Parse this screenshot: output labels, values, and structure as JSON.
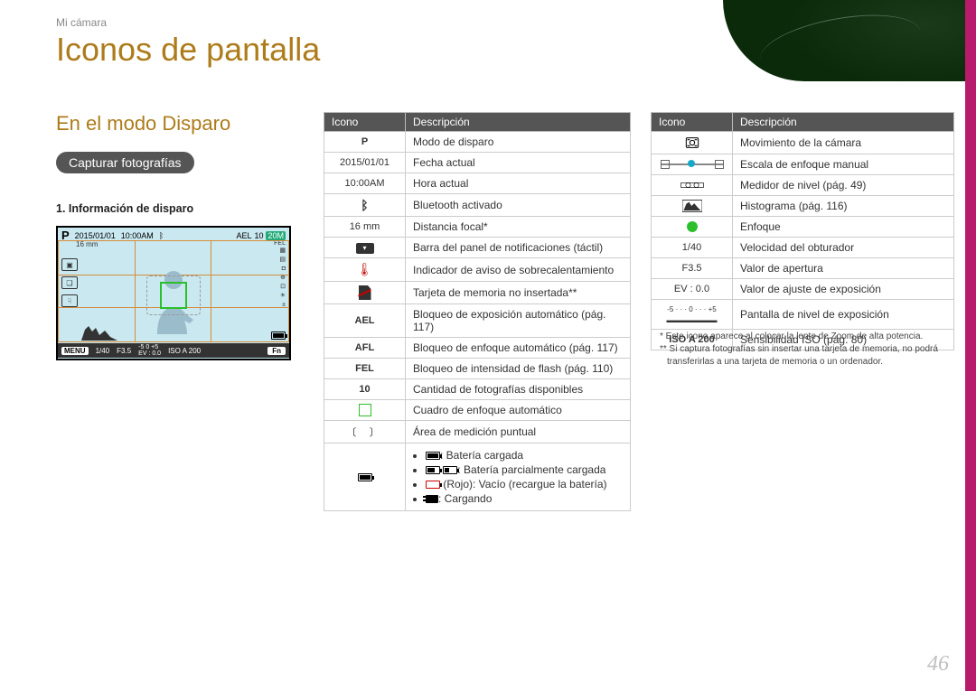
{
  "breadcrumb": "Mi cámara",
  "page_title": "Iconos de pantalla",
  "section_heading": "En el modo Disparo",
  "pill_label": "Capturar fotografías",
  "sub_label": "1. Información de disparo",
  "page_number": "46",
  "lcd": {
    "mode": "P",
    "date": "2015/01/01",
    "time": "10:00AM",
    "bt": "✱",
    "ael": "AEL",
    "fel": "FEL",
    "count": "10",
    "mp": "20M",
    "focal": "16 mm",
    "menu": "MENU",
    "fn": "Fn",
    "shutter": "1/40",
    "aperture": "F3.5",
    "ev_label": "EV : 0.0",
    "scale": "-5    0    +5",
    "iso": "ISO A 200"
  },
  "headers": {
    "icon": "Icono",
    "desc": "Descripción"
  },
  "table1": [
    {
      "icon_text": "P",
      "bold": true,
      "desc": "Modo de disparo"
    },
    {
      "icon_text": "2015/01/01",
      "desc": "Fecha actual"
    },
    {
      "icon_text": "10:00AM",
      "desc": "Hora actual"
    },
    {
      "icon_svg": "bluetooth",
      "desc": "Bluetooth activado"
    },
    {
      "icon_text": "16 mm",
      "desc": "Distancia focal*"
    },
    {
      "icon_svg": "panel-bar",
      "desc": "Barra del panel de notificaciones (táctil)"
    },
    {
      "icon_svg": "thermo",
      "desc": "Indicador de aviso de sobrecalentamiento"
    },
    {
      "icon_svg": "sd-no",
      "desc": "Tarjeta de memoria no insertada**"
    },
    {
      "icon_text": "AEL",
      "bold": true,
      "desc": "Bloqueo de exposición automático (pág. 117)"
    },
    {
      "icon_text": "AFL",
      "bold": true,
      "desc": "Bloqueo de enfoque automático (pág. 117)"
    },
    {
      "icon_text": "FEL",
      "bold": true,
      "desc": "Bloqueo de intensidad de flash (pág. 110)"
    },
    {
      "icon_text": "10",
      "bold": true,
      "desc": "Cantidad de fotografías disponibles"
    },
    {
      "icon_svg": "green-sq",
      "desc": "Cuadro de enfoque automático"
    },
    {
      "icon_svg": "bracket",
      "desc": "Área de medición puntual"
    },
    {
      "icon_svg": "battery-list",
      "desc": "battery"
    }
  ],
  "battery_lines": {
    "full": ": Batería cargada",
    "partial": ": Batería parcialmente cargada",
    "empty": " (Rojo): Vacío (recargue la batería)",
    "charge": ": Cargando"
  },
  "table2": [
    {
      "icon_svg": "shake",
      "desc": "Movimiento de la cámara"
    },
    {
      "icon_svg": "mf-scale",
      "desc": "Escala de enfoque manual"
    },
    {
      "icon_svg": "level",
      "desc": "Medidor de nivel (pág. 49)"
    },
    {
      "icon_svg": "histogram",
      "desc": "Histograma (pág. 116)"
    },
    {
      "icon_svg": "green-dot",
      "desc": "Enfoque"
    },
    {
      "icon_text": "1/40",
      "desc": "Velocidad del obturador"
    },
    {
      "icon_text": "F3.5",
      "desc": "Valor de apertura"
    },
    {
      "icon_text": "EV : 0.0",
      "desc": "Valor de ajuste de exposición"
    },
    {
      "icon_svg": "exp-scale",
      "desc": "Pantalla de nivel de exposición"
    },
    {
      "icon_text": "ISO A 200",
      "bold": true,
      "desc": "Sensibilidad ISO (pág. 80)"
    }
  ],
  "footnotes": {
    "f1": "* Este icono aparece al colocar la lente de Zoom de alta potencia.",
    "f2": "** Si captura fotografías sin insertar una tarjeta de memoria, no podrá transferirlas a una tarjeta de memoria o un ordenador."
  },
  "colors": {
    "accent": "#ad7b1a",
    "side": "#b81b6b",
    "lcd_bg": "#c9e8f0",
    "grid": "#d68c3a",
    "green": "#2bbf2b",
    "red": "#c41515"
  }
}
